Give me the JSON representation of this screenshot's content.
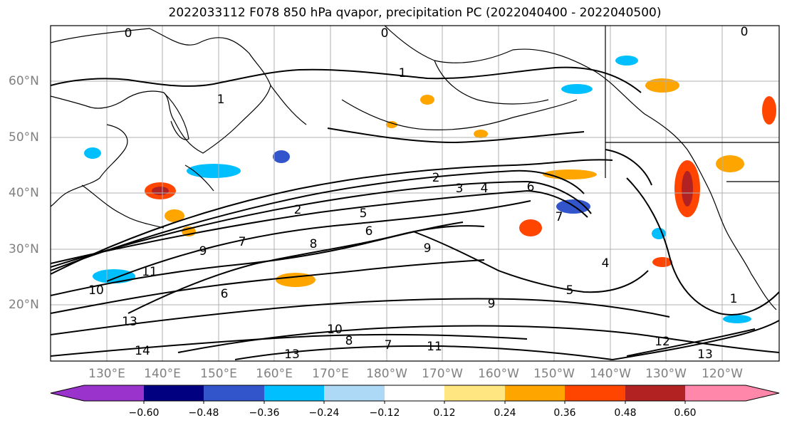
{
  "title": "2022033112 F078 850 hPa qvapor, precipitation PC (2022040400 - 2022040500)",
  "lat_labels": [
    "60°N",
    "50°N",
    "40°N",
    "30°N",
    "20°N"
  ],
  "lon_labels": [
    "130°E",
    "140°E",
    "150°E",
    "160°E",
    "170°E",
    "180°W",
    "170°W",
    "160°W",
    "150°W",
    "140°W",
    "130°W",
    "120°W"
  ],
  "colorbar": {
    "colors": [
      "#9933cc",
      "#000080",
      "#3355cc",
      "#00bfff",
      "#add8f6",
      "#ffffff",
      "#ffe680",
      "#ffa500",
      "#ff4500",
      "#b22222",
      "#ff88aa"
    ],
    "tick_labels": [
      "−0.60",
      "−0.48",
      "−0.36",
      "−0.24",
      "−0.12",
      "0.12",
      "0.24",
      "0.36",
      "0.48",
      "0.60"
    ]
  },
  "contour_labels": [
    "0",
    "0",
    "0",
    "1",
    "1",
    "1",
    "2",
    "2",
    "3",
    "4",
    "4",
    "5",
    "6",
    "6",
    "7",
    "7",
    "8",
    "8",
    "9",
    "9",
    "10",
    "10",
    "11",
    "11",
    "12",
    "13",
    "13",
    "13",
    "14",
    "5",
    "6",
    "7",
    "9"
  ]
}
